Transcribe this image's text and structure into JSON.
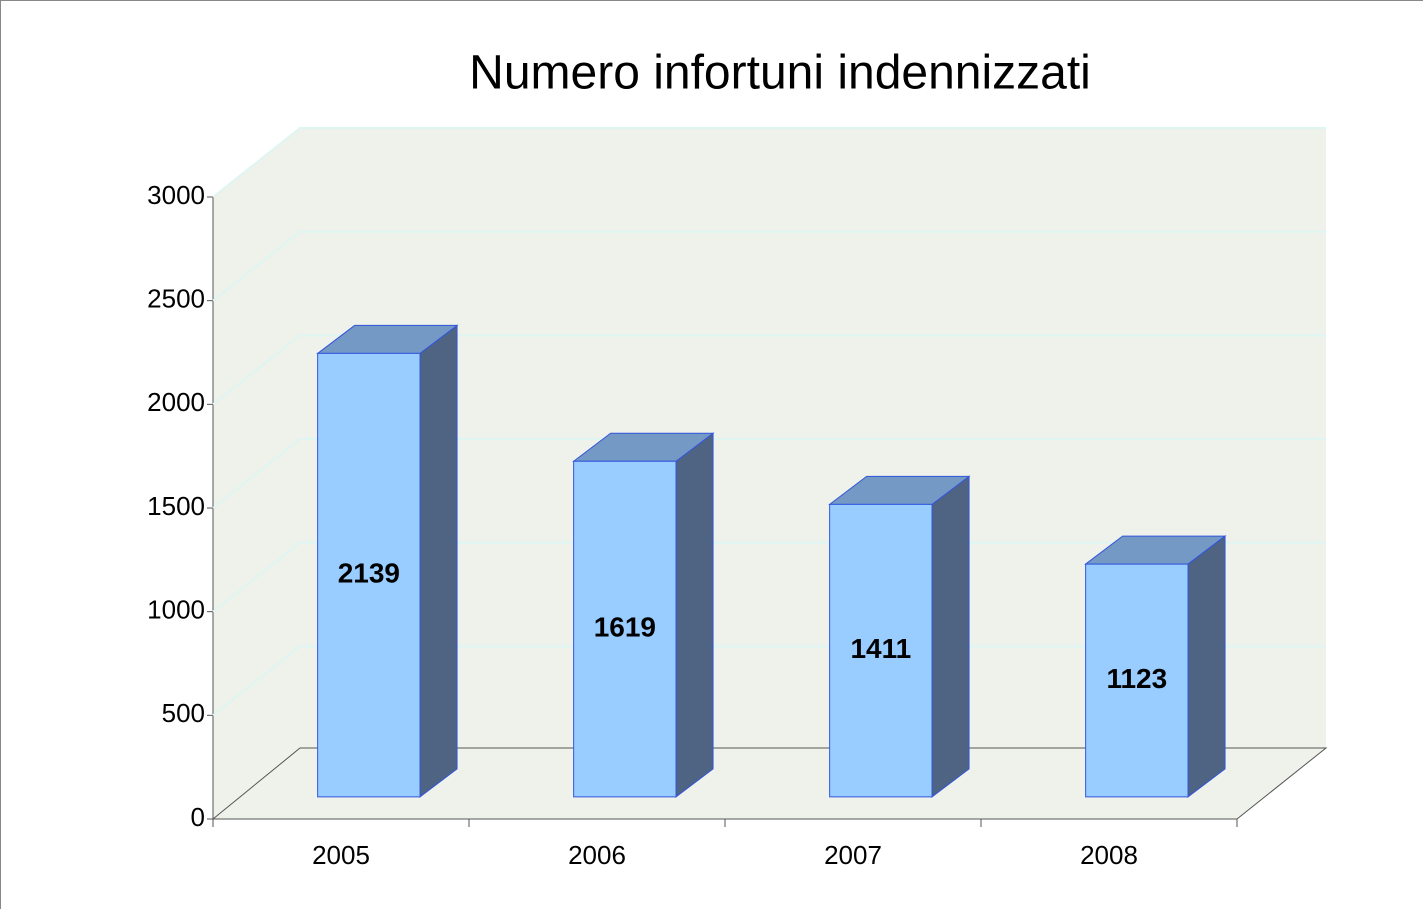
{
  "chart_data": {
    "type": "bar3d",
    "title": "Numero infortuni indennizzati",
    "categories": [
      "2005",
      "2006",
      "2007",
      "2008"
    ],
    "values": [
      2139,
      1619,
      1411,
      1123
    ],
    "color": "#99ccff",
    "ylim": [
      0,
      3000
    ],
    "yticks": [
      0,
      500,
      1000,
      1500,
      2000,
      2500,
      3000
    ],
    "grid": true
  }
}
